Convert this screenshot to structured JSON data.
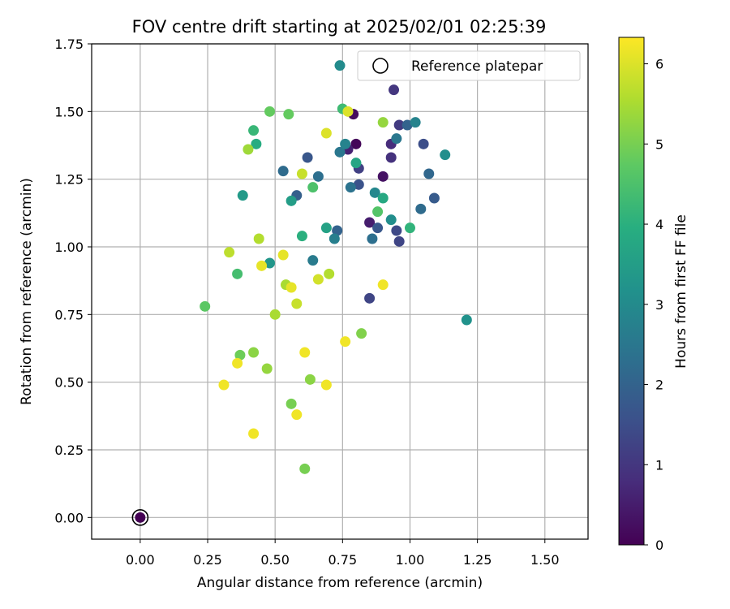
{
  "chart_data": {
    "type": "scatter",
    "title": "FOV centre drift starting at 2025/02/01 02:25:39",
    "xlabel": "Angular distance from reference (arcmin)",
    "ylabel": "Rotation from reference (arcmin)",
    "xlim": [
      -0.18,
      1.66
    ],
    "ylim": [
      -0.08,
      1.75
    ],
    "xticks": [
      "0.00",
      "0.25",
      "0.50",
      "0.75",
      "1.00",
      "1.25",
      "1.50"
    ],
    "yticks": [
      "0.00",
      "0.25",
      "0.50",
      "0.75",
      "1.00",
      "1.25",
      "1.50",
      "1.75"
    ],
    "grid": true,
    "legend": {
      "position": "top-right",
      "entries": [
        "Reference platepar"
      ]
    },
    "reference_point": {
      "x": 0.0,
      "y": 0.0,
      "label": "Reference platepar"
    },
    "colorbar": {
      "label": "Hours from first FF file",
      "range": [
        0,
        6.33
      ],
      "ticks": [
        "0",
        "1",
        "2",
        "3",
        "4",
        "5",
        "6"
      ],
      "colormap": "viridis"
    },
    "series": [
      {
        "points": [
          [
            0.8,
            1.38,
            0.1
          ],
          [
            0.79,
            1.49,
            0.2
          ],
          [
            0.9,
            1.26,
            0.3
          ],
          [
            0.85,
            1.09,
            0.5
          ],
          [
            0.77,
            1.36,
            0.6
          ],
          [
            0.93,
            1.38,
            0.8
          ],
          [
            0.93,
            1.33,
            0.9
          ],
          [
            0.94,
            1.58,
            1.0
          ],
          [
            0.96,
            1.45,
            1.1
          ],
          [
            0.81,
            1.29,
            1.2
          ],
          [
            0.96,
            1.02,
            1.3
          ],
          [
            0.85,
            0.81,
            1.3
          ],
          [
            0.95,
            1.06,
            1.4
          ],
          [
            1.05,
            1.38,
            1.5
          ],
          [
            0.81,
            1.23,
            1.6
          ],
          [
            0.62,
            1.33,
            1.7
          ],
          [
            0.88,
            1.07,
            1.7
          ],
          [
            1.09,
            1.18,
            1.8
          ],
          [
            0.58,
            1.19,
            1.9
          ],
          [
            0.99,
            1.45,
            2.0
          ],
          [
            0.73,
            1.06,
            2.0
          ],
          [
            1.07,
            1.27,
            2.1
          ],
          [
            1.04,
            1.14,
            2.2
          ],
          [
            0.53,
            1.28,
            2.2
          ],
          [
            0.86,
            1.03,
            2.3
          ],
          [
            0.66,
            1.26,
            2.3
          ],
          [
            0.78,
            1.22,
            2.4
          ],
          [
            0.95,
            1.4,
            2.5
          ],
          [
            0.74,
            1.35,
            2.5
          ],
          [
            0.64,
            0.95,
            2.6
          ],
          [
            0.72,
            1.03,
            2.7
          ],
          [
            1.02,
            1.46,
            2.8
          ],
          [
            0.76,
            1.38,
            2.8
          ],
          [
            0.87,
            1.2,
            2.9
          ],
          [
            0.74,
            1.67,
            3.0
          ],
          [
            0.93,
            1.1,
            3.1
          ],
          [
            1.13,
            1.34,
            3.1
          ],
          [
            1.21,
            0.73,
            3.2
          ],
          [
            0.48,
            0.94,
            3.3
          ],
          [
            0.38,
            1.19,
            3.4
          ],
          [
            0.56,
            1.17,
            3.5
          ],
          [
            0.69,
            1.07,
            3.6
          ],
          [
            0.8,
            1.31,
            3.7
          ],
          [
            0.9,
            1.18,
            3.8
          ],
          [
            0.43,
            1.38,
            3.9
          ],
          [
            0.6,
            1.04,
            4.0
          ],
          [
            1.0,
            1.07,
            4.1
          ],
          [
            0.42,
            1.43,
            4.2
          ],
          [
            0.75,
            1.51,
            4.3
          ],
          [
            0.36,
            0.9,
            4.4
          ],
          [
            0.64,
            1.22,
            4.5
          ],
          [
            0.88,
            1.13,
            4.6
          ],
          [
            0.24,
            0.78,
            4.7
          ],
          [
            0.48,
            1.5,
            4.8
          ],
          [
            0.55,
            1.49,
            4.8
          ],
          [
            0.37,
            0.6,
            4.9
          ],
          [
            0.56,
            0.42,
            5.0
          ],
          [
            0.61,
            0.18,
            5.0
          ],
          [
            0.82,
            0.68,
            5.1
          ],
          [
            0.63,
            0.51,
            5.2
          ],
          [
            0.42,
            0.61,
            5.2
          ],
          [
            0.9,
            1.46,
            5.3
          ],
          [
            0.47,
            0.55,
            5.3
          ],
          [
            0.4,
            1.36,
            5.4
          ],
          [
            0.54,
            0.86,
            5.5
          ],
          [
            0.5,
            0.75,
            5.5
          ],
          [
            0.7,
            0.9,
            5.6
          ],
          [
            0.44,
            1.03,
            5.6
          ],
          [
            0.33,
            0.98,
            5.7
          ],
          [
            0.58,
            0.79,
            5.8
          ],
          [
            0.6,
            1.27,
            5.8
          ],
          [
            0.66,
            0.88,
            5.9
          ],
          [
            0.77,
            1.5,
            6.0
          ],
          [
            0.69,
            1.42,
            6.0
          ],
          [
            0.45,
            0.93,
            6.1
          ],
          [
            0.53,
            0.97,
            6.1
          ],
          [
            0.56,
            0.85,
            6.1
          ],
          [
            0.42,
            0.31,
            6.2
          ],
          [
            0.61,
            0.61,
            6.2
          ],
          [
            0.58,
            0.38,
            6.2
          ],
          [
            0.31,
            0.49,
            6.2
          ],
          [
            0.69,
            0.49,
            6.2
          ],
          [
            0.36,
            0.57,
            6.2
          ],
          [
            0.9,
            0.86,
            6.2
          ],
          [
            0.76,
            0.65,
            6.2
          ]
        ]
      }
    ]
  }
}
